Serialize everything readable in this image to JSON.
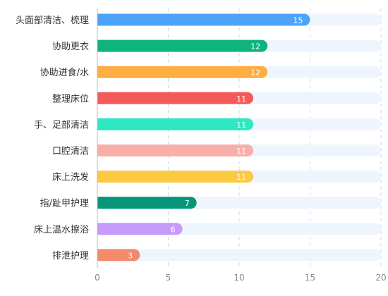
{
  "chart_data": {
    "type": "bar",
    "orientation": "horizontal",
    "title": "",
    "xlabel": "",
    "ylabel": "",
    "categories": [
      "头面部清洁、梳理",
      "协助更衣",
      "协助进食/水",
      "整理床位",
      "手、足部清洁",
      "口腔清洁",
      "床上洗发",
      "指/趾甲护理",
      "床上温水擦浴",
      "排泄护理"
    ],
    "values": [
      15,
      12,
      12,
      11,
      11,
      11,
      11,
      7,
      6,
      3
    ],
    "value_labels": [
      "15",
      "12",
      "12",
      "11",
      "11",
      "11",
      "11",
      "7",
      "6",
      "3"
    ],
    "bar_colors": [
      "#4da3fa",
      "#0fb37e",
      "#fdad42",
      "#f55a5a",
      "#2ee8c3",
      "#f9afa8",
      "#fcc943",
      "#05967a",
      "#c69bfb",
      "#f28a6b"
    ],
    "track_color": "#eef5fe",
    "xlim": [
      0,
      20
    ],
    "xticks": [
      "0",
      "5",
      "10",
      "15",
      "20"
    ],
    "grid": true,
    "grid_style": "dashed-vertical",
    "legend": "none"
  }
}
